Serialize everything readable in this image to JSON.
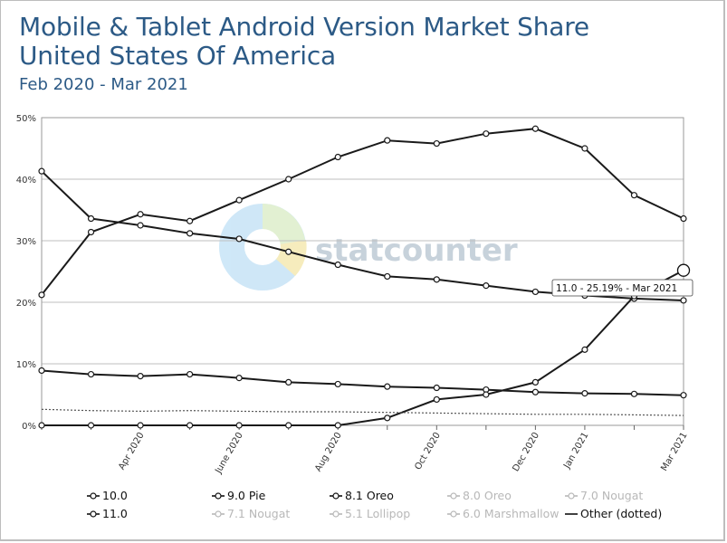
{
  "header": {
    "title_line1": "Mobile & Tablet Android Version Market Share",
    "title_line2": "United States Of America",
    "subtitle": "Feb 2020 - Mar 2021"
  },
  "watermark": {
    "text": "statcounter"
  },
  "tooltip": {
    "text": "11.0 - 25.19% - Mar 2021"
  },
  "colors": {
    "line": "#1a1a1a",
    "grid": "#bfbfbf",
    "title": "#2c5a86",
    "watermark_text": "#c7d2db",
    "disabled": "#b8b8b8"
  },
  "chart_data": {
    "type": "line",
    "title": "Mobile & Tablet Android Version Market Share",
    "subtitle": "United States Of America",
    "ylim": [
      0,
      50
    ],
    "yticks": [
      "0%",
      "10%",
      "20%",
      "30%",
      "40%",
      "50%"
    ],
    "x_tick_labels": [
      "Apr 2020",
      "June 2020",
      "Aug 2020",
      "Oct 2020",
      "Dec 2020",
      "Jan 2021",
      "Mar 2021"
    ],
    "x_tick_months": [
      "2020-04",
      "2020-06",
      "2020-08",
      "2020-10",
      "2020-12",
      "2021-01",
      "2021-03"
    ],
    "x": [
      "2020-02",
      "2020-03",
      "2020-04",
      "2020-05",
      "2020-06",
      "2020-07",
      "2020-08",
      "2020-09",
      "2020-10",
      "2020-11",
      "2020-12",
      "2021-01",
      "2021-02",
      "2021-03"
    ],
    "grid": true,
    "series": [
      {
        "name": "10.0",
        "values": [
          21.2,
          31.4,
          34.3,
          33.2,
          36.6,
          40.0,
          43.6,
          46.3,
          45.8,
          47.4,
          48.2,
          45.0,
          37.4,
          33.6
        ]
      },
      {
        "name": "9.0 Pie",
        "values": [
          41.3,
          33.6,
          32.5,
          31.2,
          30.3,
          28.2,
          26.1,
          24.2,
          23.7,
          22.7,
          21.7,
          21.1,
          20.6,
          20.3
        ]
      },
      {
        "name": "8.1 Oreo",
        "values": [
          8.9,
          8.3,
          8.0,
          8.3,
          7.7,
          7.0,
          6.7,
          6.3,
          6.1,
          5.8,
          5.4,
          5.2,
          5.1,
          4.9
        ]
      },
      {
        "name": "11.0",
        "values": [
          0.0,
          0.0,
          0.0,
          0.0,
          0.0,
          0.0,
          0.0,
          1.2,
          4.2,
          5.0,
          7.0,
          12.3,
          21.0,
          25.19
        ]
      },
      {
        "name": "Other (dotted)",
        "dotted": true,
        "values": [
          2.6,
          2.4,
          2.3,
          2.4,
          2.3,
          2.2,
          2.2,
          2.1,
          2.0,
          1.9,
          1.8,
          1.8,
          1.7,
          1.6
        ]
      }
    ]
  },
  "legend": [
    {
      "label": "10.0",
      "enabled": true
    },
    {
      "label": "9.0 Pie",
      "enabled": true
    },
    {
      "label": "8.1 Oreo",
      "enabled": true
    },
    {
      "label": "8.0 Oreo",
      "enabled": false
    },
    {
      "label": "7.0 Nougat",
      "enabled": false
    },
    {
      "label": "11.0",
      "enabled": true
    },
    {
      "label": "7.1 Nougat",
      "enabled": false
    },
    {
      "label": "5.1 Lollipop",
      "enabled": false
    },
    {
      "label": "6.0 Marshmallow",
      "enabled": false
    },
    {
      "label": "Other (dotted)",
      "enabled": true,
      "dotted_line": true
    }
  ]
}
